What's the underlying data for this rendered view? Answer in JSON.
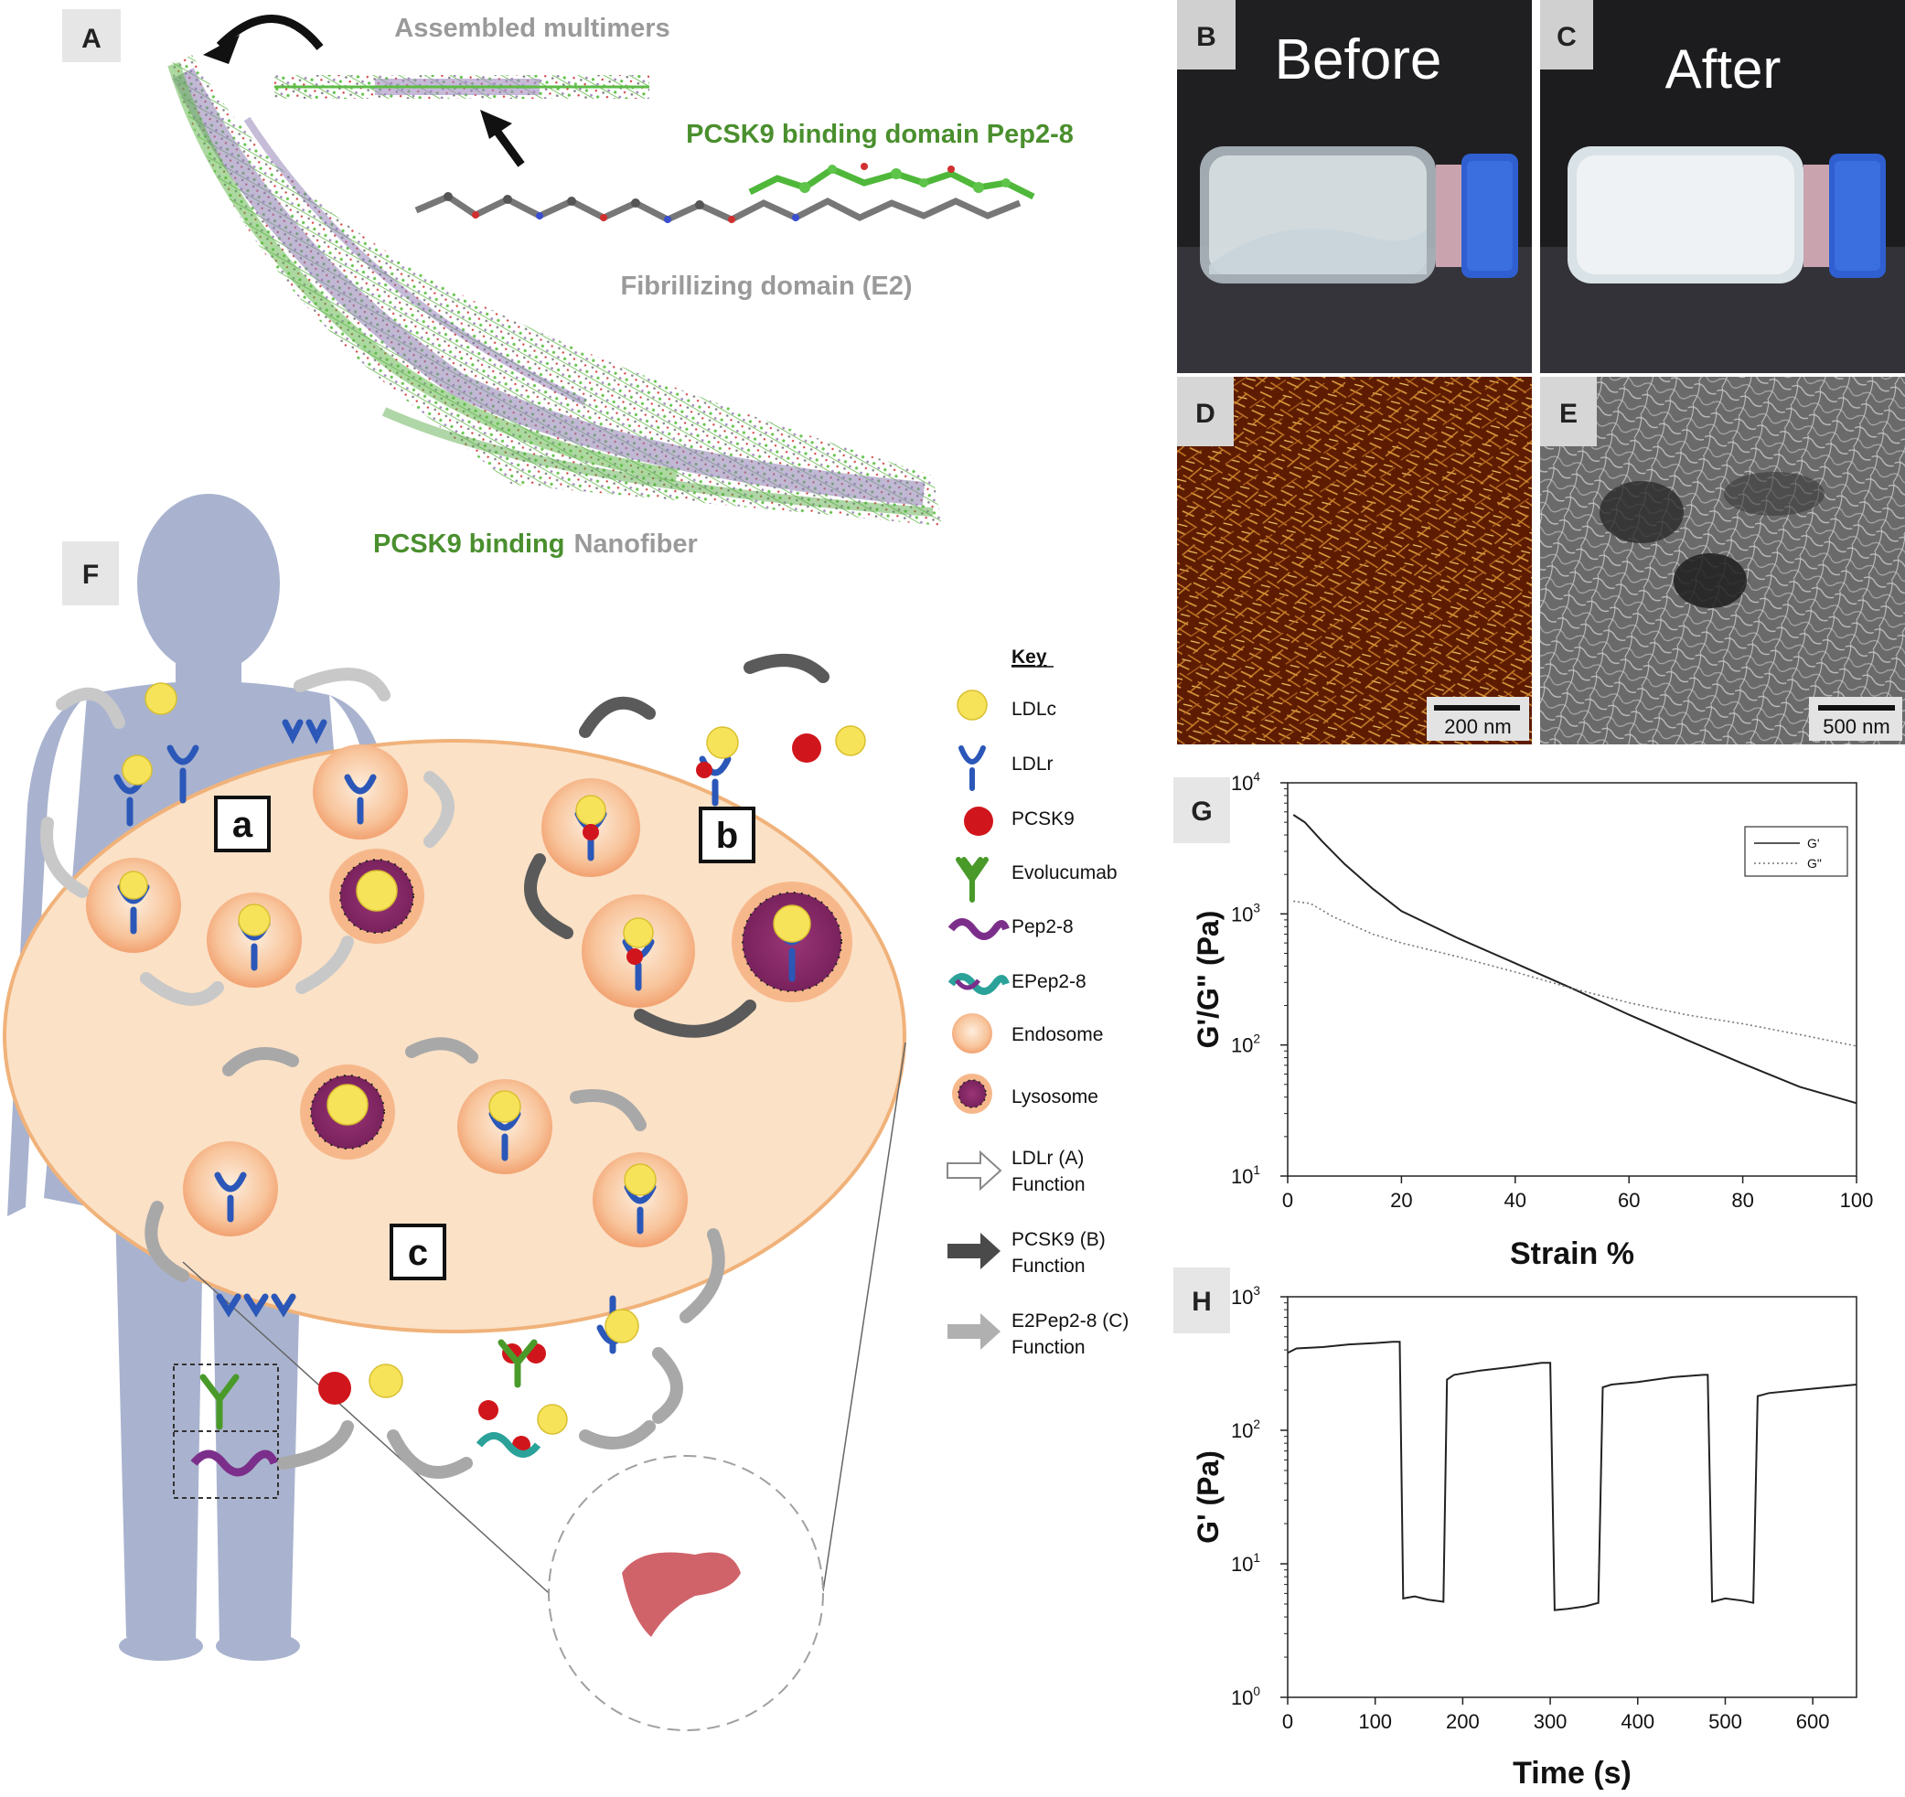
{
  "panel_letters": {
    "A": "A",
    "B": "B",
    "C": "C",
    "D": "D",
    "E": "E",
    "F": "F",
    "G": "G",
    "H": "H"
  },
  "panel_a": {
    "assembled_multimers": "Assembled multimers",
    "binding_domain": "PCSK9 binding domain Pep2-8",
    "fibrillizing_domain": "Fibrillizing domain (E2)",
    "nanofiber_part1": "PCSK9 binding",
    "nanofiber_part2": "Nanofiber"
  },
  "photos": {
    "before": "Before",
    "after": "After",
    "scale_d": "200 nm",
    "scale_e": "500 nm"
  },
  "panel_f": {
    "box_a": "a",
    "box_b": "b",
    "box_c": "c",
    "key_title": "Key",
    "key_items": [
      {
        "label": "LDLc"
      },
      {
        "label": "LDLr"
      },
      {
        "label": "PCSK9"
      },
      {
        "label": "Evolucumab"
      },
      {
        "label": "Pep2-8"
      },
      {
        "label": "EPep2-8"
      },
      {
        "label": "Endosome"
      },
      {
        "label": "Lysosome"
      },
      {
        "line1": "LDLr (A)",
        "line2": "Function"
      },
      {
        "line1": "PCSK9 (B)",
        "line2": "Function"
      },
      {
        "line1": "E2Pep2-8 (C)",
        "line2": "Function"
      }
    ],
    "colors": {
      "ldlc": "#f7e35a",
      "ldlr": "#2b57b8",
      "pcsk9": "#d0161c",
      "evolucumab": "#4a9a2a",
      "endosome": "#f7b888",
      "lysosome": "#8e2a6b",
      "cell": "#fbe1c6",
      "body": "#a8b3cf"
    }
  },
  "chart_data": [
    {
      "type": "line",
      "panel": "G",
      "xlabel": "Strain %",
      "ylabel": "G'/G\" (Pa)",
      "x_ticks": [
        0,
        20,
        40,
        60,
        80,
        100
      ],
      "xlim": [
        0,
        100
      ],
      "y_scale": "log",
      "ylim": [
        10,
        10000
      ],
      "y_ticks": [
        {
          "base": "10",
          "exp": "1"
        },
        {
          "base": "10",
          "exp": "2"
        },
        {
          "base": "10",
          "exp": "3"
        },
        {
          "base": "10",
          "exp": "4"
        }
      ],
      "legend_placement": "top-right",
      "series": [
        {
          "name": "G'",
          "style": "solid",
          "x": [
            1,
            3,
            6,
            10,
            15,
            20,
            30,
            40,
            50,
            60,
            70,
            80,
            90,
            100
          ],
          "y": [
            5700,
            5000,
            3600,
            2400,
            1550,
            1050,
            650,
            420,
            270,
            170,
            110,
            72,
            48,
            36
          ]
        },
        {
          "name": "G\"",
          "style": "dotted",
          "x": [
            1,
            4,
            8,
            15,
            20,
            30,
            40,
            50,
            60,
            70,
            80,
            90,
            100
          ],
          "y": [
            1250,
            1200,
            950,
            700,
            600,
            470,
            360,
            270,
            210,
            170,
            145,
            120,
            98
          ]
        }
      ]
    },
    {
      "type": "line",
      "panel": "H",
      "xlabel": "Time (s)",
      "ylabel": "G' (Pa)",
      "x_ticks": [
        0,
        100,
        200,
        300,
        400,
        500,
        600
      ],
      "xlim": [
        0,
        650
      ],
      "y_scale": "log",
      "ylim": [
        1,
        1000
      ],
      "y_ticks": [
        {
          "base": "10",
          "exp": "0"
        },
        {
          "base": "10",
          "exp": "1"
        },
        {
          "base": "10",
          "exp": "2"
        },
        {
          "base": "10",
          "exp": "3"
        }
      ],
      "series": [
        {
          "name": "G'",
          "x": [
            0,
            10,
            40,
            70,
            100,
            120,
            128,
            132,
            145,
            160,
            178,
            182,
            190,
            220,
            260,
            290,
            300,
            305,
            320,
            340,
            355,
            360,
            370,
            400,
            440,
            475,
            480,
            485,
            500,
            520,
            532,
            537,
            550,
            600,
            650
          ],
          "y": [
            380,
            410,
            420,
            440,
            450,
            460,
            460,
            5.5,
            5.7,
            5.4,
            5.2,
            240,
            260,
            280,
            300,
            320,
            320,
            4.5,
            4.6,
            4.8,
            5.1,
            210,
            220,
            230,
            250,
            260,
            260,
            5.2,
            5.5,
            5.3,
            5.1,
            180,
            190,
            205,
            220
          ]
        }
      ]
    }
  ]
}
